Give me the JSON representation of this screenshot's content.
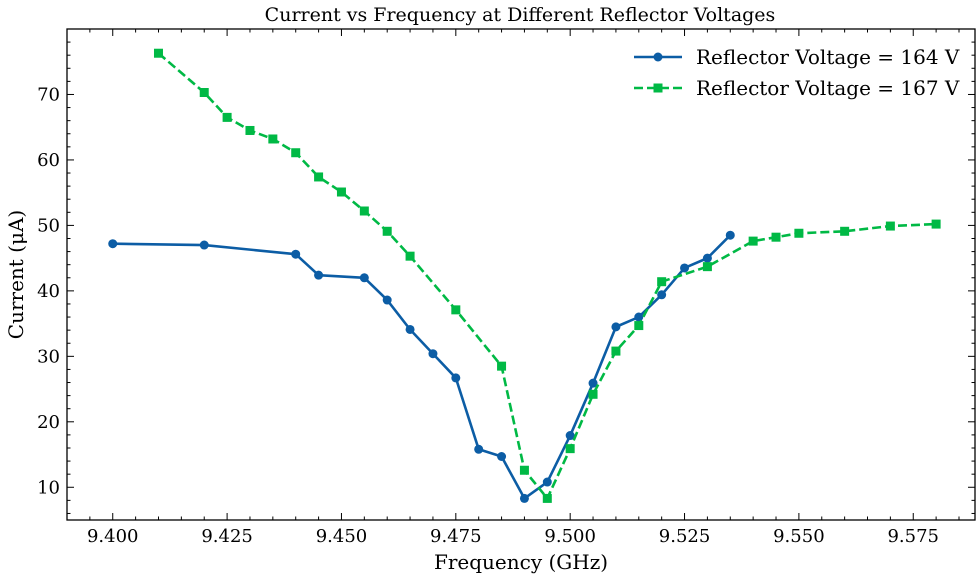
{
  "chart_data": {
    "type": "line",
    "title": "Current vs Frequency at Different Reflector Voltages",
    "xlabel": "Frequency (GHz)",
    "ylabel": "Current (μA)",
    "xlim": [
      9.39,
      9.5885
    ],
    "ylim": [
      5,
      80
    ],
    "xticks": [
      9.4,
      9.425,
      9.45,
      9.475,
      9.5,
      9.525,
      9.55,
      9.575
    ],
    "xtick_labels": [
      "9.400",
      "9.425",
      "9.450",
      "9.475",
      "9.500",
      "9.525",
      "9.550",
      "9.575"
    ],
    "yticks": [
      10,
      20,
      30,
      40,
      50,
      60,
      70
    ],
    "ytick_labels": [
      "10",
      "20",
      "30",
      "40",
      "50",
      "60",
      "70"
    ],
    "grid": false,
    "legend_position": "top-right",
    "series": [
      {
        "name": "Reflector Voltage = 164 V",
        "color": "#0C5DA5",
        "marker": "circle",
        "linestyle": "solid",
        "x": [
          9.4,
          9.42,
          9.44,
          9.445,
          9.455,
          9.46,
          9.465,
          9.47,
          9.475,
          9.48,
          9.485,
          9.49,
          9.495,
          9.5,
          9.505,
          9.51,
          9.515,
          9.52,
          9.525,
          9.53,
          9.535
        ],
        "y": [
          47.2,
          47.0,
          45.6,
          42.4,
          42.0,
          38.6,
          34.1,
          30.4,
          26.7,
          15.8,
          14.7,
          8.3,
          10.8,
          17.9,
          25.9,
          34.5,
          36.0,
          39.4,
          43.5,
          45.0,
          48.5
        ]
      },
      {
        "name": "Reflector Voltage = 167 V",
        "color": "#00B945",
        "marker": "square",
        "linestyle": "dashed",
        "x": [
          9.41,
          9.42,
          9.425,
          9.43,
          9.435,
          9.44,
          9.445,
          9.45,
          9.455,
          9.46,
          9.465,
          9.475,
          9.485,
          9.49,
          9.495,
          9.5,
          9.505,
          9.51,
          9.515,
          9.52,
          9.53,
          9.54,
          9.545,
          9.55,
          9.56,
          9.57,
          9.58
        ],
        "y": [
          76.3,
          70.3,
          66.5,
          64.5,
          63.2,
          61.1,
          57.4,
          55.1,
          52.2,
          49.1,
          45.3,
          37.1,
          28.5,
          12.6,
          8.3,
          15.9,
          24.2,
          30.8,
          34.7,
          41.4,
          43.7,
          47.6,
          48.2,
          48.8,
          49.1,
          49.9,
          50.2
        ]
      }
    ]
  }
}
